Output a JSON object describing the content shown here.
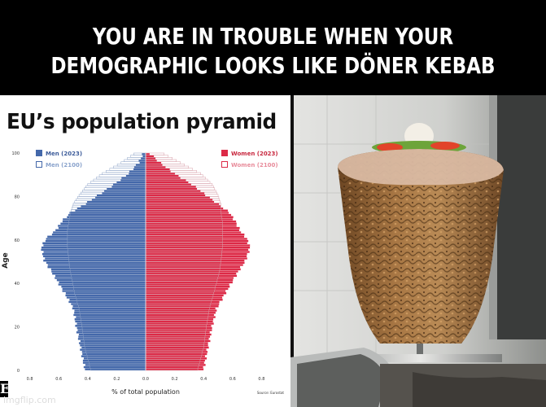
{
  "meme": {
    "caption_line1": "YOU ARE IN TROUBLE WHEN YOUR",
    "caption_line2": "DEMOGRAPHIC LOOKS LIKE DÖNER KEBAB",
    "watermark": "imgflip.com"
  },
  "colors": {
    "men": "#4468aa",
    "women": "#dc2a47",
    "background": "#000000"
  },
  "chart_data": {
    "type": "bar",
    "title": "EU’s population pyramid",
    "xlabel": "% of total population",
    "ylabel": "Age",
    "source_label": "Source: Eurostat",
    "x_ticks": [
      "0.8",
      "0.6",
      "0.4",
      "0.2",
      "0.0",
      "0.2",
      "0.4",
      "0.6",
      "0.8"
    ],
    "y_ticks": [
      "0",
      "20",
      "40",
      "60",
      "80",
      "100"
    ],
    "xlim": [
      -0.8,
      0.8
    ],
    "ylim": [
      0,
      100
    ],
    "legend": {
      "position": "top",
      "men_2023": "Men (2023)",
      "men_2100": "Men (2100)",
      "women_2023": "Women (2023)",
      "women_2100": "Women (2100)"
    },
    "age_knots": [
      0,
      10,
      20,
      28,
      35,
      45,
      50,
      56,
      60,
      64,
      68,
      72,
      76,
      80,
      85,
      90,
      95,
      100
    ],
    "series": [
      {
        "name": "Men (2023)",
        "values": [
          0.42,
          0.45,
          0.48,
          0.5,
          0.56,
          0.65,
          0.7,
          0.72,
          0.69,
          0.62,
          0.58,
          0.52,
          0.42,
          0.33,
          0.22,
          0.12,
          0.05,
          0.01
        ]
      },
      {
        "name": "Women (2023)",
        "values": [
          0.4,
          0.43,
          0.46,
          0.49,
          0.55,
          0.64,
          0.69,
          0.72,
          0.7,
          0.65,
          0.62,
          0.58,
          0.5,
          0.42,
          0.32,
          0.2,
          0.1,
          0.02
        ]
      },
      {
        "name": "Men (2100)",
        "values": [
          0.38,
          0.42,
          0.44,
          0.46,
          0.49,
          0.52,
          0.53,
          0.54,
          0.54,
          0.54,
          0.53,
          0.52,
          0.5,
          0.46,
          0.4,
          0.3,
          0.17,
          0.06
        ]
      },
      {
        "name": "Women (2100)",
        "values": [
          0.36,
          0.4,
          0.42,
          0.44,
          0.47,
          0.51,
          0.52,
          0.53,
          0.53,
          0.53,
          0.53,
          0.52,
          0.52,
          0.5,
          0.46,
          0.38,
          0.24,
          0.1
        ]
      }
    ]
  }
}
